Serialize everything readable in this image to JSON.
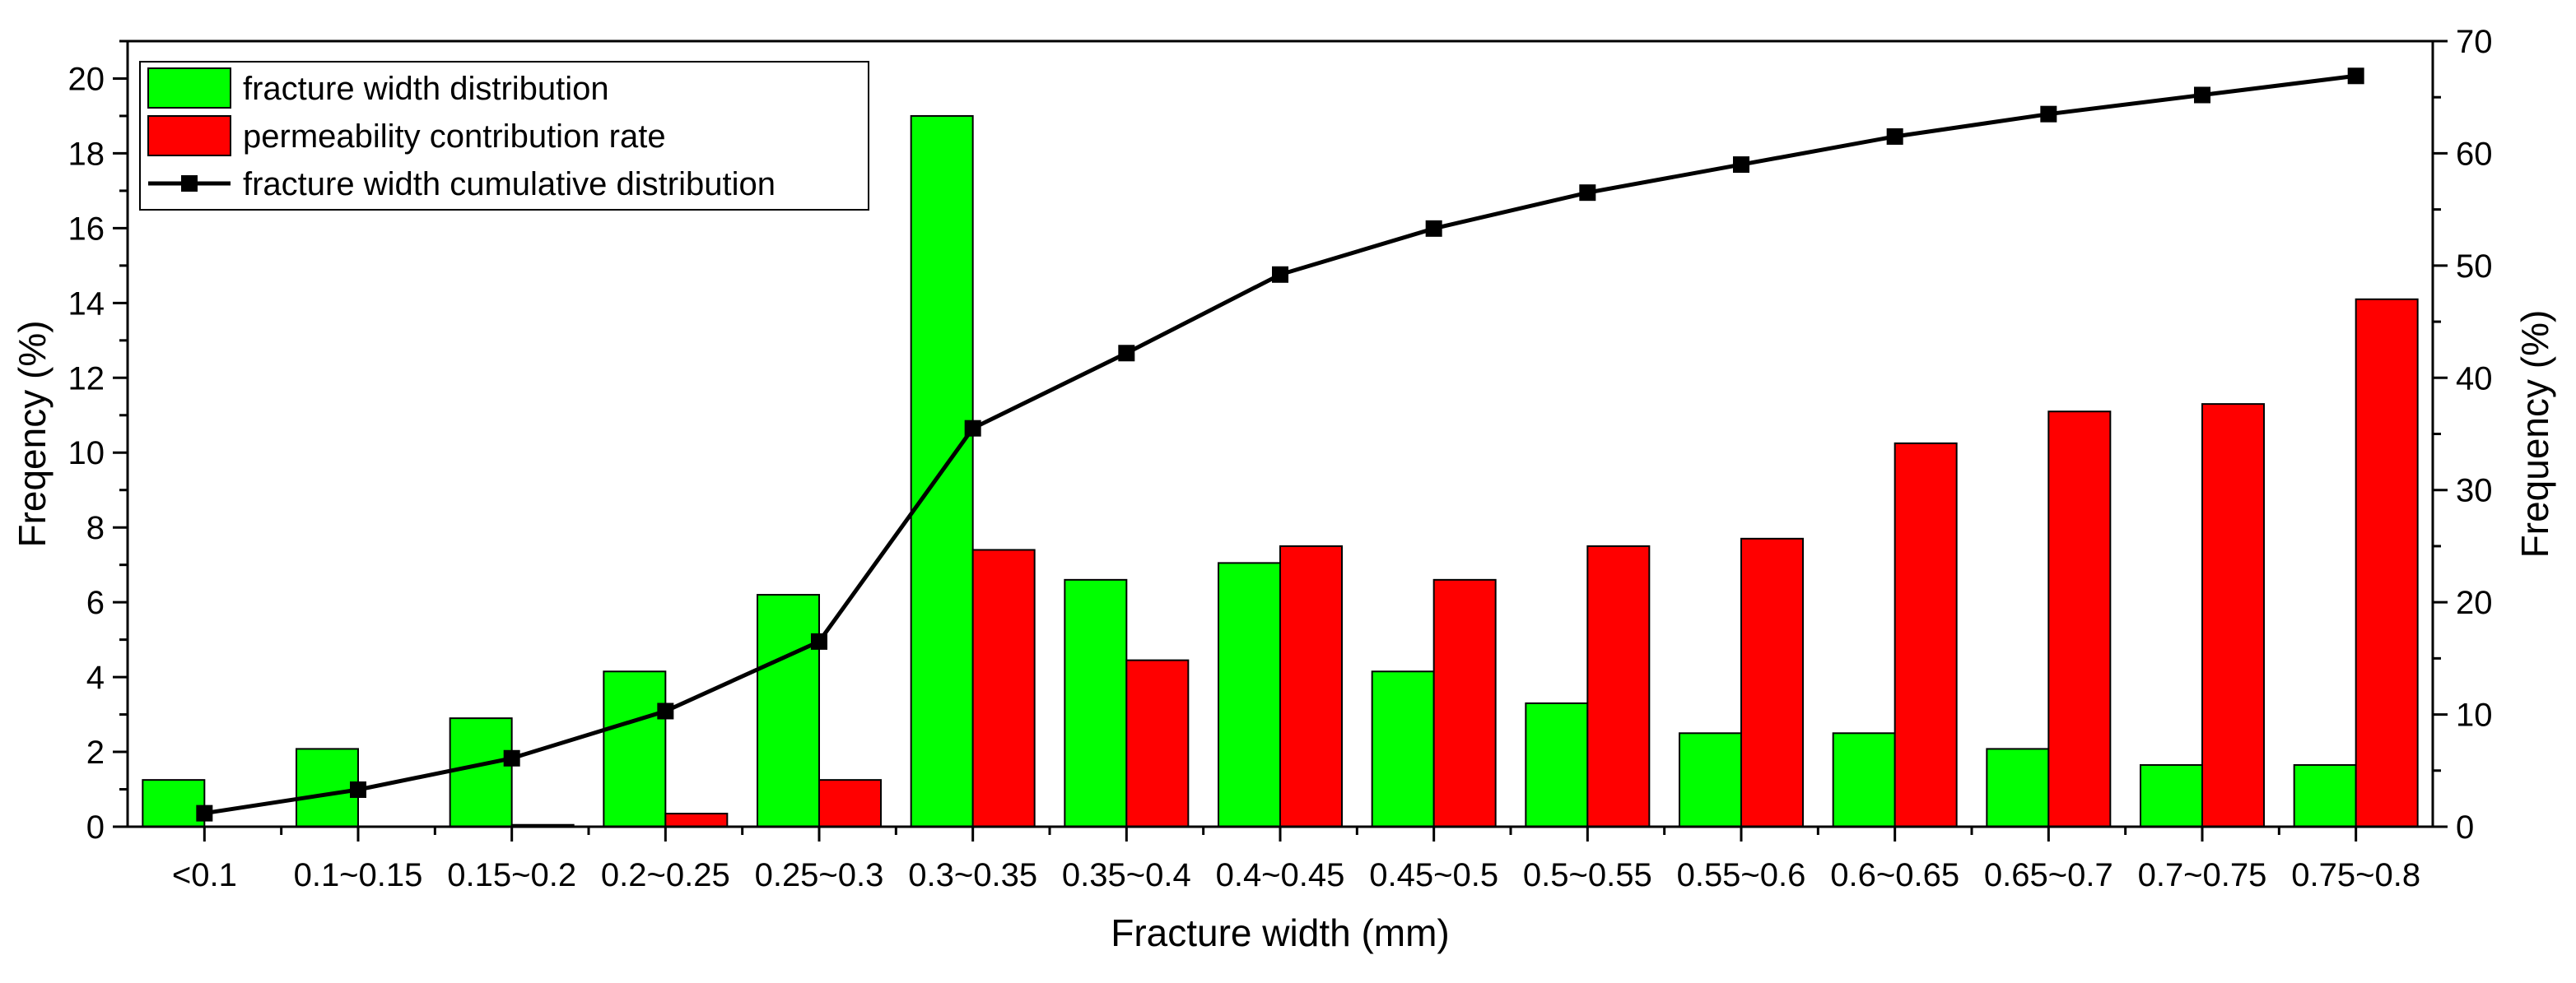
{
  "chart_data": {
    "type": "bar",
    "categories": [
      "<0.1",
      "0.1~0.15",
      "0.15~0.2",
      "0.2~0.25",
      "0.25~0.3",
      "0.3~0.35",
      "0.35~0.4",
      "0.4~0.45",
      "0.45~0.5",
      "0.5~0.55",
      "0.55~0.6",
      "0.6~0.65",
      "0.65~0.7",
      "0.7~0.75",
      "0.75~0.8"
    ],
    "series": [
      {
        "name": "fracture width distribution",
        "kind": "bar",
        "axis": "left",
        "color": "#00ff00",
        "values": [
          1.25,
          2.08,
          2.9,
          4.15,
          6.2,
          19.0,
          6.6,
          7.05,
          4.15,
          3.3,
          2.5,
          2.5,
          2.08,
          1.65,
          1.65
        ]
      },
      {
        "name": "permeability contribution rate",
        "kind": "bar",
        "axis": "left",
        "color": "#ff0000",
        "values": [
          0.0,
          0.0,
          0.05,
          0.35,
          1.25,
          7.4,
          4.45,
          7.5,
          6.6,
          7.5,
          7.7,
          10.25,
          11.1,
          11.3,
          14.1
        ]
      },
      {
        "name": "fracture width cumulative distribution",
        "kind": "line",
        "axis": "right",
        "color": "#000000",
        "marker": "square",
        "values": [
          1.2,
          3.3,
          6.1,
          10.3,
          16.5,
          35.5,
          42.2,
          49.2,
          53.3,
          56.5,
          59.0,
          61.5,
          63.5,
          65.2,
          66.9
        ]
      }
    ],
    "xlabel": "Fracture width (mm)",
    "ylabel": "Freqency (%)",
    "y2label": "Frequency (%)",
    "ylim": [
      0,
      21
    ],
    "y2lim": [
      0,
      70
    ],
    "yticks": [
      0,
      2,
      4,
      6,
      8,
      10,
      12,
      14,
      16,
      18,
      20
    ],
    "y2ticks": [
      0,
      10,
      20,
      30,
      40,
      50,
      60,
      70
    ],
    "grid": false,
    "legend_position": "top-left"
  }
}
